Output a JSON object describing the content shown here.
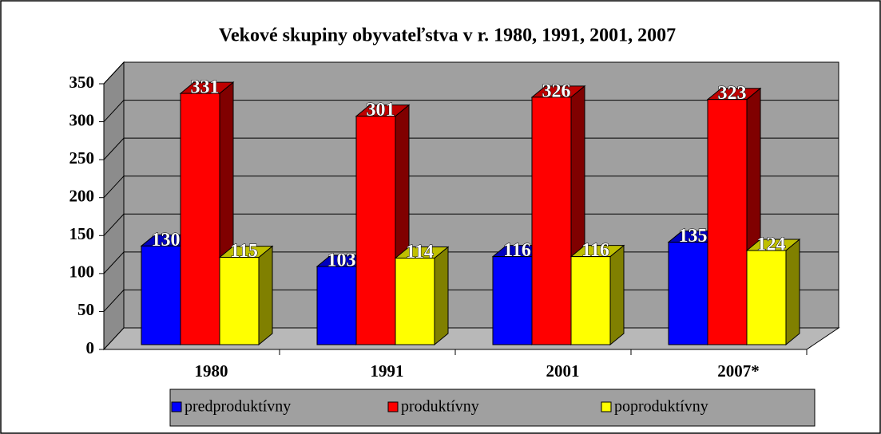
{
  "chart_data": {
    "type": "bar3d",
    "title": "Vekové skupiny obyvateľstva v r. 1980, 1991, 2001, 2007",
    "categories": [
      "1980",
      "1991",
      "2001",
      "2007*"
    ],
    "series": [
      {
        "name": "predproduktívny",
        "color": "#0000ff",
        "values": [
          130,
          103,
          116,
          135
        ]
      },
      {
        "name": "produktívny",
        "color": "#ff0000",
        "values": [
          331,
          301,
          326,
          323
        ]
      },
      {
        "name": "poproduktívny",
        "color": "#ffff00",
        "values": [
          115,
          114,
          116,
          124
        ]
      }
    ],
    "ylim": [
      0,
      350
    ],
    "yticks": [
      0,
      50,
      100,
      150,
      200,
      250,
      300,
      350
    ],
    "grid": true,
    "legend": "bottom"
  }
}
